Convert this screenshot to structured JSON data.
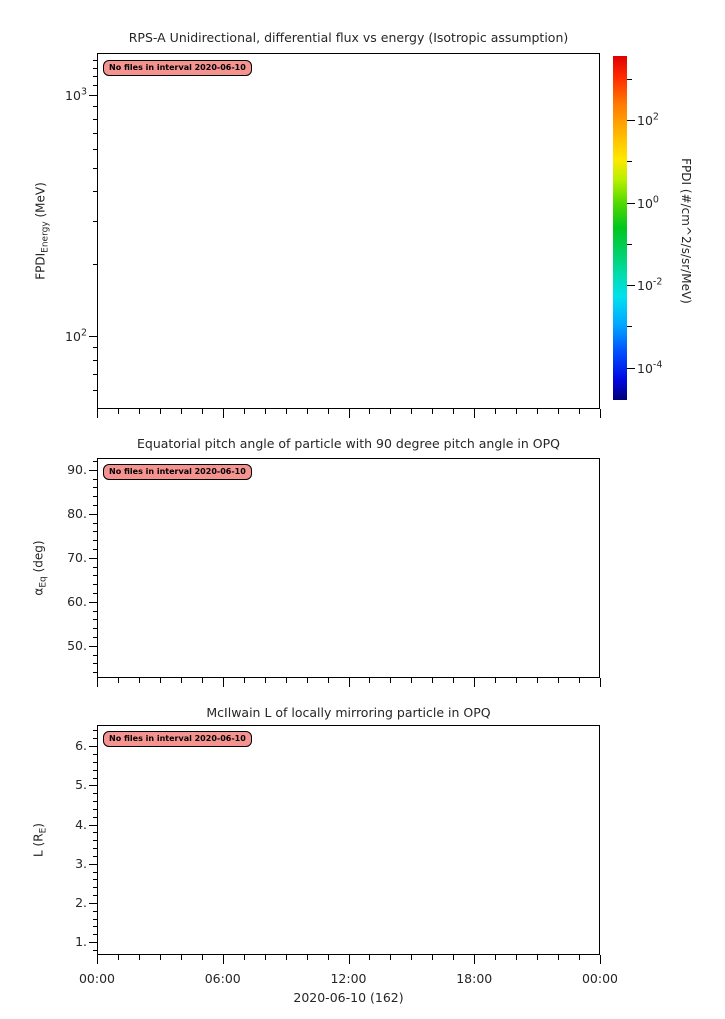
{
  "chart_data": [
    {
      "type": "heatmap",
      "title": "RPS-A Unidirectional, differential flux vs energy (Isotropic assumption)",
      "ylabel": "FPDI_Energy (MeV)",
      "ylabel_parts": [
        {
          "text": "FPDI"
        },
        {
          "text": "Energy",
          "sub": true
        },
        {
          "text": " (MeV)"
        }
      ],
      "yscale": "log",
      "ylim": [
        50,
        1500
      ],
      "yticks": [
        {
          "value": 1000,
          "base": "10",
          "exp": "3"
        },
        {
          "value": 100,
          "base": "10",
          "exp": "2"
        }
      ],
      "ylog_minor_mantissas": [
        2,
        3,
        4,
        5,
        6,
        7,
        8,
        9
      ],
      "ylog_top_minors": [
        1100,
        1200,
        1300,
        1400
      ],
      "annotation": "No files in interval 2020-06-10",
      "series": []
    },
    {
      "type": "line",
      "title": "Equatorial pitch angle of particle with 90 degree pitch angle in OPQ",
      "ylabel": "αEq (deg)",
      "ylabel_parts": [
        {
          "text": "α"
        },
        {
          "text": "Eq",
          "sub": true
        },
        {
          "text": " (deg)"
        }
      ],
      "yscale": "linear",
      "ylim": [
        42.7,
        92.7
      ],
      "yticks": [
        {
          "value": 90,
          "label": "90."
        },
        {
          "value": 80,
          "label": "80."
        },
        {
          "value": 70,
          "label": "70."
        },
        {
          "value": 60,
          "label": "60."
        },
        {
          "value": 50,
          "label": "50."
        }
      ],
      "yminor_step": 2,
      "annotation": "No files in interval 2020-06-10",
      "series": []
    },
    {
      "type": "line",
      "title": "McIlwain L of locally mirroring particle in OPQ",
      "ylabel": "L (R_E)",
      "ylabel_parts": [
        {
          "text": "L (R"
        },
        {
          "text": "E",
          "sub": true
        },
        {
          "text": ")"
        }
      ],
      "yscale": "linear",
      "ylim": [
        0.67,
        6.54
      ],
      "yticks": [
        {
          "value": 6,
          "label": "6."
        },
        {
          "value": 5,
          "label": "5."
        },
        {
          "value": 4,
          "label": "4."
        },
        {
          "value": 3,
          "label": "3."
        },
        {
          "value": 2,
          "label": "2."
        },
        {
          "value": 1,
          "label": "1."
        }
      ],
      "yminor_step": 0.2,
      "annotation": "No files in interval 2020-06-10",
      "series": []
    }
  ],
  "xaxis": {
    "label": "2020-06-10 (162)",
    "lim_hours": [
      0,
      24
    ],
    "major_ticks": [
      {
        "hour": 0,
        "label": "00:00"
      },
      {
        "hour": 6,
        "label": "06:00"
      },
      {
        "hour": 12,
        "label": "12:00"
      },
      {
        "hour": 18,
        "label": "18:00"
      },
      {
        "hour": 24,
        "label": "00:00"
      }
    ],
    "minor_step_hours": 1
  },
  "colorbar": {
    "label": "FPDI (#/cm^2/s/sr/MeV)",
    "scale": "log",
    "lim_exp": [
      -4.78,
      3.55
    ],
    "major_ticks": [
      {
        "base": "10",
        "exp": "2"
      },
      {
        "base": "10",
        "exp": "0"
      },
      {
        "base": "10",
        "exp": "-2"
      },
      {
        "base": "10",
        "exp": "-4"
      }
    ],
    "minor_exps": [
      3,
      1,
      -1,
      -3
    ],
    "gradient_top_to_bottom": [
      "#dd0000 0%",
      "#ff2a00 6%",
      "#ff7a00 14%",
      "#ffb300 22%",
      "#ffe800 30%",
      "#b8ef00 36%",
      "#4fd800 43%",
      "#00c61e 50%",
      "#00d26e 58%",
      "#00dcb4 64%",
      "#00e0ee 70%",
      "#00a8ff 78%",
      "#0050ff 86%",
      "#0008e0 94%",
      "#000078 100%"
    ]
  },
  "colors": {
    "background": "#ffffff",
    "frame": "#000000",
    "text": "#262626",
    "annotation_bg": "#f59390"
  }
}
